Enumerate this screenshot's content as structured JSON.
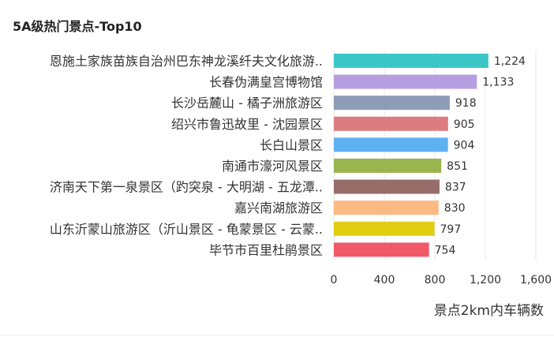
{
  "chart_data": {
    "type": "bar",
    "orientation": "horizontal",
    "title": "5A级热门景点-Top10",
    "xlabel": "景点2km内车辆数",
    "ylabel": "",
    "xlim": [
      0,
      1600
    ],
    "xticks": [
      0,
      400,
      800,
      1200,
      1600
    ],
    "xtick_labels": [
      "0",
      "400",
      "800",
      "1,200",
      "1,600"
    ],
    "grid": true,
    "categories": [
      "恩施土家族苗族自治州巴东神龙溪纤夫文化旅游..",
      "长春伪满皇宫博物馆",
      "长沙岳麓山 - 橘子洲旅游区",
      "绍兴市鲁迅故里 - 沈园景区",
      "长白山景区",
      "南通市濠河风景区",
      "济南天下第一泉景区（趵突泉 - 大明湖 - 五龙潭..",
      "嘉兴南湖旅游区",
      "山东沂蒙山旅游区（沂山景区 - 龟蒙景区 - 云蒙..",
      "毕节市百里杜鹃景区"
    ],
    "values": [
      1224,
      1133,
      918,
      905,
      904,
      851,
      837,
      830,
      797,
      754
    ],
    "value_labels": [
      "1,224",
      "1,133",
      "918",
      "905",
      "904",
      "851",
      "837",
      "830",
      "797",
      "754"
    ],
    "colors": [
      "#3cc7c7",
      "#b69fe0",
      "#8f9cb8",
      "#dd7b80",
      "#5db1f1",
      "#99b54d",
      "#976d69",
      "#fbb983",
      "#e2cd13",
      "#f05a69"
    ]
  }
}
